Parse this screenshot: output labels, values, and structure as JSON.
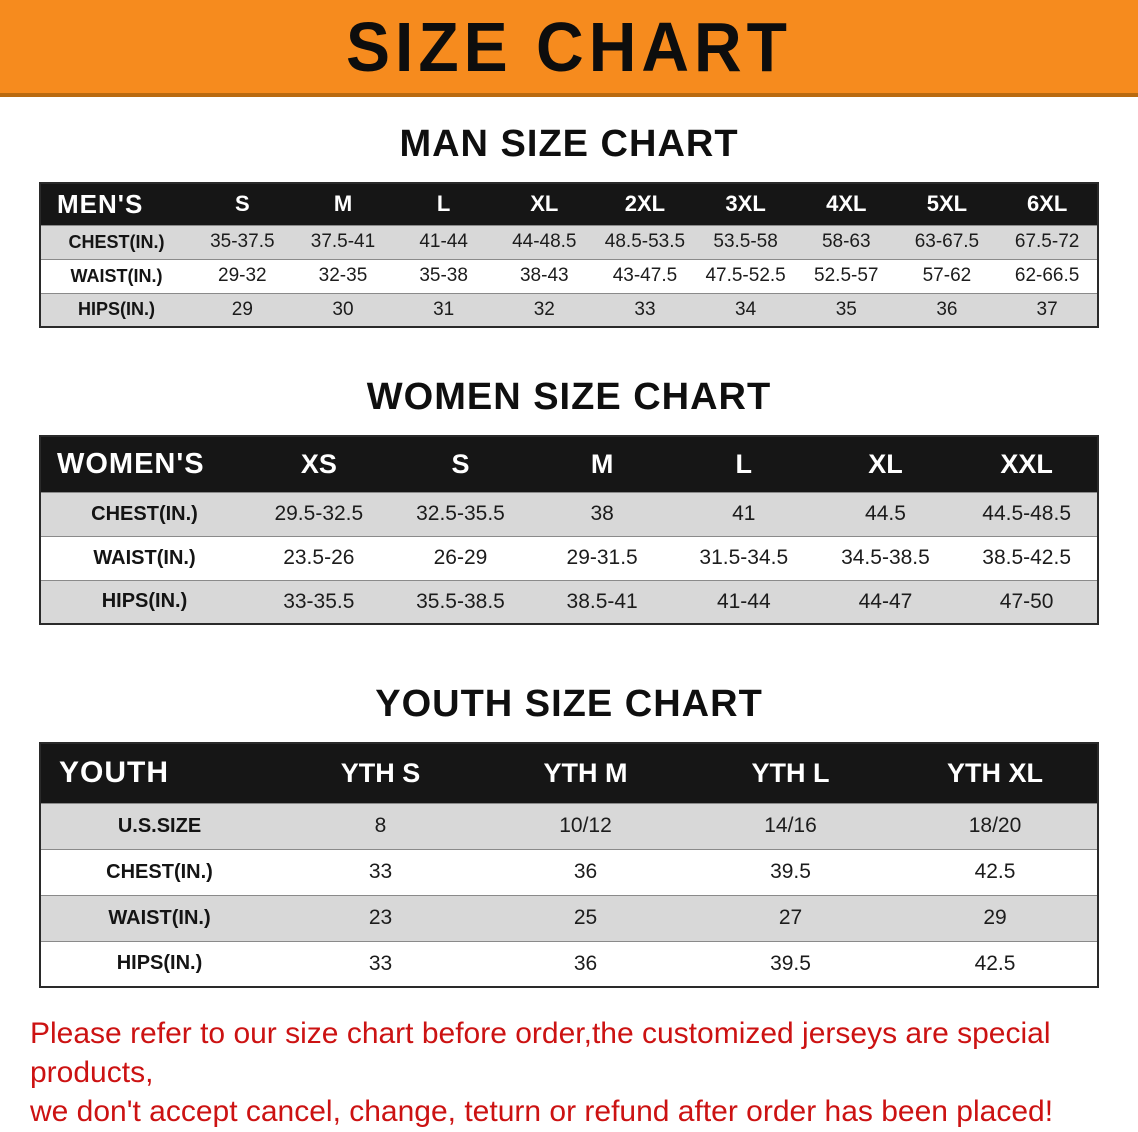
{
  "banner": {
    "title": "SIZE CHART"
  },
  "sections": [
    {
      "heading": "MAN SIZE CHART",
      "table": {
        "header": [
          "MEN'S",
          "S",
          "M",
          "L",
          "XL",
          "2XL",
          "3XL",
          "4XL",
          "5XL",
          "6XL"
        ],
        "rows": [
          [
            "CHEST(IN.)",
            "35-37.5",
            "37.5-41",
            "41-44",
            "44-48.5",
            "48.5-53.5",
            "53.5-58",
            "58-63",
            "63-67.5",
            "67.5-72"
          ],
          [
            "WAIST(IN.)",
            "29-32",
            "32-35",
            "35-38",
            "38-43",
            "43-47.5",
            "47.5-52.5",
            "52.5-57",
            "57-62",
            "62-66.5"
          ],
          [
            "HIPS(IN.)",
            "29",
            "30",
            "31",
            "32",
            "33",
            "34",
            "35",
            "36",
            "37"
          ]
        ]
      }
    },
    {
      "heading": "WOMEN SIZE CHART",
      "table": {
        "header": [
          "WOMEN'S",
          "XS",
          "S",
          "M",
          "L",
          "XL",
          "XXL"
        ],
        "rows": [
          [
            "CHEST(IN.)",
            "29.5-32.5",
            "32.5-35.5",
            "38",
            "41",
            "44.5",
            "44.5-48.5"
          ],
          [
            "WAIST(IN.)",
            "23.5-26",
            "26-29",
            "29-31.5",
            "31.5-34.5",
            "34.5-38.5",
            "38.5-42.5"
          ],
          [
            "HIPS(IN.)",
            "33-35.5",
            "35.5-38.5",
            "38.5-41",
            "41-44",
            "44-47",
            "47-50"
          ]
        ]
      }
    },
    {
      "heading": "YOUTH SIZE CHART",
      "table": {
        "header": [
          "YOUTH",
          "YTH S",
          "YTH M",
          "YTH L",
          "YTH XL"
        ],
        "rows": [
          [
            "U.S.SIZE",
            "8",
            "10/12",
            "14/16",
            "18/20"
          ],
          [
            "CHEST(IN.)",
            "33",
            "36",
            "39.5",
            "42.5"
          ],
          [
            "WAIST(IN.)",
            "23",
            "25",
            "27",
            "29"
          ],
          [
            "HIPS(IN.)",
            "33",
            "36",
            "39.5",
            "42.5"
          ]
        ]
      }
    }
  ],
  "footer": {
    "line1": "Please refer to our size chart before order,the customized jerseys are special products,",
    "line2": "we don't accept cancel, change, teturn or refund after order has been placed!"
  },
  "colors": {
    "banner_bg": "#f68b1e",
    "header_bg": "#161616",
    "row_alt_bg": "#d8d8d8",
    "note_red": "#cc1212"
  }
}
